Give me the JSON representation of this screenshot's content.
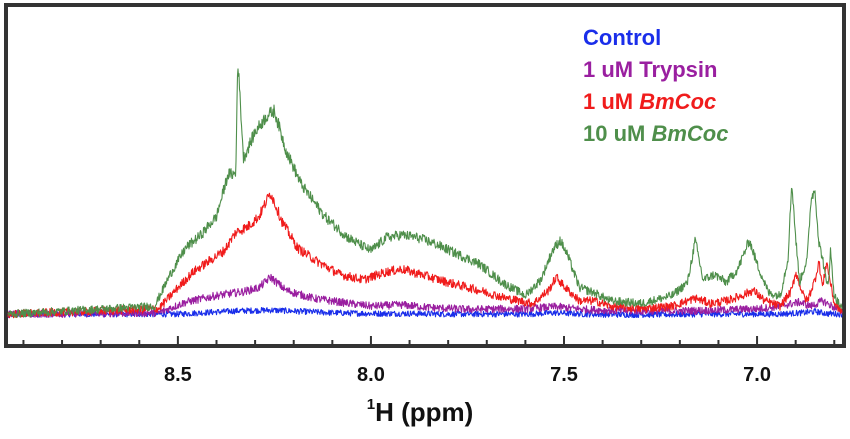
{
  "chart_data": {
    "type": "line",
    "xlabel_sup": "1",
    "xlabel_main": "H (ppm)",
    "x_reversed": true,
    "xlim": [
      8.94,
      6.78
    ],
    "ylim": [
      0,
      1.0
    ],
    "x_ticks": [
      {
        "value": 8.5,
        "label": "8.5"
      },
      {
        "value": 8.0,
        "label": "8.0"
      },
      {
        "value": 7.5,
        "label": "7.5"
      },
      {
        "value": 7.0,
        "label": "7.0"
      }
    ],
    "legend_position": "top-right",
    "series": [
      {
        "name": "Control",
        "legend_plain": "Control",
        "legend_italic": "",
        "color": "#1a2eea",
        "x": [
          8.94,
          8.5,
          8.44,
          8.35,
          8.26,
          8.18,
          8.1,
          8.0,
          7.9,
          7.8,
          7.7,
          7.6,
          7.52,
          7.45,
          7.35,
          7.25,
          7.15,
          7.05,
          6.95,
          6.88,
          6.85,
          6.82,
          6.78
        ],
        "values": [
          0.03,
          0.03,
          0.035,
          0.042,
          0.045,
          0.04,
          0.035,
          0.032,
          0.032,
          0.03,
          0.03,
          0.03,
          0.035,
          0.03,
          0.028,
          0.028,
          0.03,
          0.03,
          0.03,
          0.035,
          0.04,
          0.032,
          0.03
        ]
      },
      {
        "name": "1 uM Trypsin",
        "legend_plain": "1 uM Trypsin",
        "legend_italic": "",
        "color": "#9a1fa0",
        "x": [
          8.94,
          8.55,
          8.48,
          8.4,
          8.33,
          8.29,
          8.26,
          8.22,
          8.15,
          8.08,
          8.0,
          7.92,
          7.85,
          7.75,
          7.6,
          7.52,
          7.45,
          7.35,
          7.2,
          7.1,
          7.0,
          6.95,
          6.89,
          6.86,
          6.83,
          6.8,
          6.78
        ],
        "values": [
          0.03,
          0.035,
          0.075,
          0.1,
          0.115,
          0.13,
          0.17,
          0.12,
          0.09,
          0.075,
          0.06,
          0.065,
          0.055,
          0.048,
          0.05,
          0.058,
          0.048,
          0.042,
          0.042,
          0.045,
          0.05,
          0.058,
          0.075,
          0.06,
          0.08,
          0.055,
          0.04
        ]
      },
      {
        "name": "1 uM BmCoc",
        "legend_plain": "1 uM ",
        "legend_italic": "BmCoc",
        "color": "#f01c1c",
        "x": [
          8.94,
          8.55,
          8.5,
          8.46,
          8.42,
          8.38,
          8.35,
          8.32,
          8.29,
          8.26,
          8.23,
          8.19,
          8.14,
          8.08,
          8.02,
          7.96,
          7.92,
          7.87,
          7.8,
          7.72,
          7.65,
          7.58,
          7.54,
          7.52,
          7.5,
          7.46,
          7.42,
          7.38,
          7.3,
          7.22,
          7.16,
          7.12,
          7.08,
          7.04,
          7.01,
          6.98,
          6.94,
          6.91,
          6.9,
          6.88,
          6.87,
          6.85,
          6.84,
          6.83,
          6.82,
          6.8,
          6.78
        ],
        "values": [
          0.03,
          0.05,
          0.13,
          0.19,
          0.23,
          0.27,
          0.34,
          0.36,
          0.4,
          0.49,
          0.38,
          0.28,
          0.23,
          0.18,
          0.16,
          0.19,
          0.2,
          0.18,
          0.15,
          0.12,
          0.09,
          0.07,
          0.12,
          0.17,
          0.135,
          0.08,
          0.08,
          0.06,
          0.05,
          0.06,
          0.09,
          0.07,
          0.08,
          0.1,
          0.12,
          0.08,
          0.06,
          0.12,
          0.19,
          0.1,
          0.08,
          0.16,
          0.23,
          0.13,
          0.23,
          0.07,
          0.04
        ]
      },
      {
        "name": "10 uM BmCoc",
        "legend_plain": "10 uM ",
        "legend_italic": "BmCoc",
        "color": "#4f8f4b",
        "x": [
          8.94,
          8.56,
          8.52,
          8.48,
          8.44,
          8.4,
          8.37,
          8.35,
          8.345,
          8.33,
          8.3,
          8.27,
          8.25,
          8.22,
          8.18,
          8.12,
          8.06,
          8.0,
          7.96,
          7.92,
          7.88,
          7.84,
          7.78,
          7.72,
          7.66,
          7.6,
          7.56,
          7.53,
          7.51,
          7.49,
          7.46,
          7.42,
          7.38,
          7.3,
          7.22,
          7.18,
          7.16,
          7.14,
          7.11,
          7.08,
          7.05,
          7.02,
          7.0,
          6.97,
          6.94,
          6.92,
          6.91,
          6.9,
          6.89,
          6.87,
          6.86,
          6.85,
          6.84,
          6.83,
          6.82,
          6.815,
          6.81,
          6.8,
          6.78
        ],
        "values": [
          0.03,
          0.06,
          0.18,
          0.28,
          0.33,
          0.4,
          0.56,
          0.56,
          1.0,
          0.62,
          0.72,
          0.78,
          0.8,
          0.65,
          0.52,
          0.4,
          0.32,
          0.27,
          0.32,
          0.33,
          0.32,
          0.3,
          0.26,
          0.22,
          0.15,
          0.1,
          0.16,
          0.27,
          0.31,
          0.25,
          0.13,
          0.11,
          0.08,
          0.07,
          0.1,
          0.15,
          0.31,
          0.16,
          0.18,
          0.15,
          0.2,
          0.31,
          0.22,
          0.11,
          0.1,
          0.24,
          0.53,
          0.32,
          0.15,
          0.24,
          0.47,
          0.5,
          0.3,
          0.24,
          0.14,
          0.16,
          0.27,
          0.1,
          0.05
        ]
      }
    ]
  }
}
